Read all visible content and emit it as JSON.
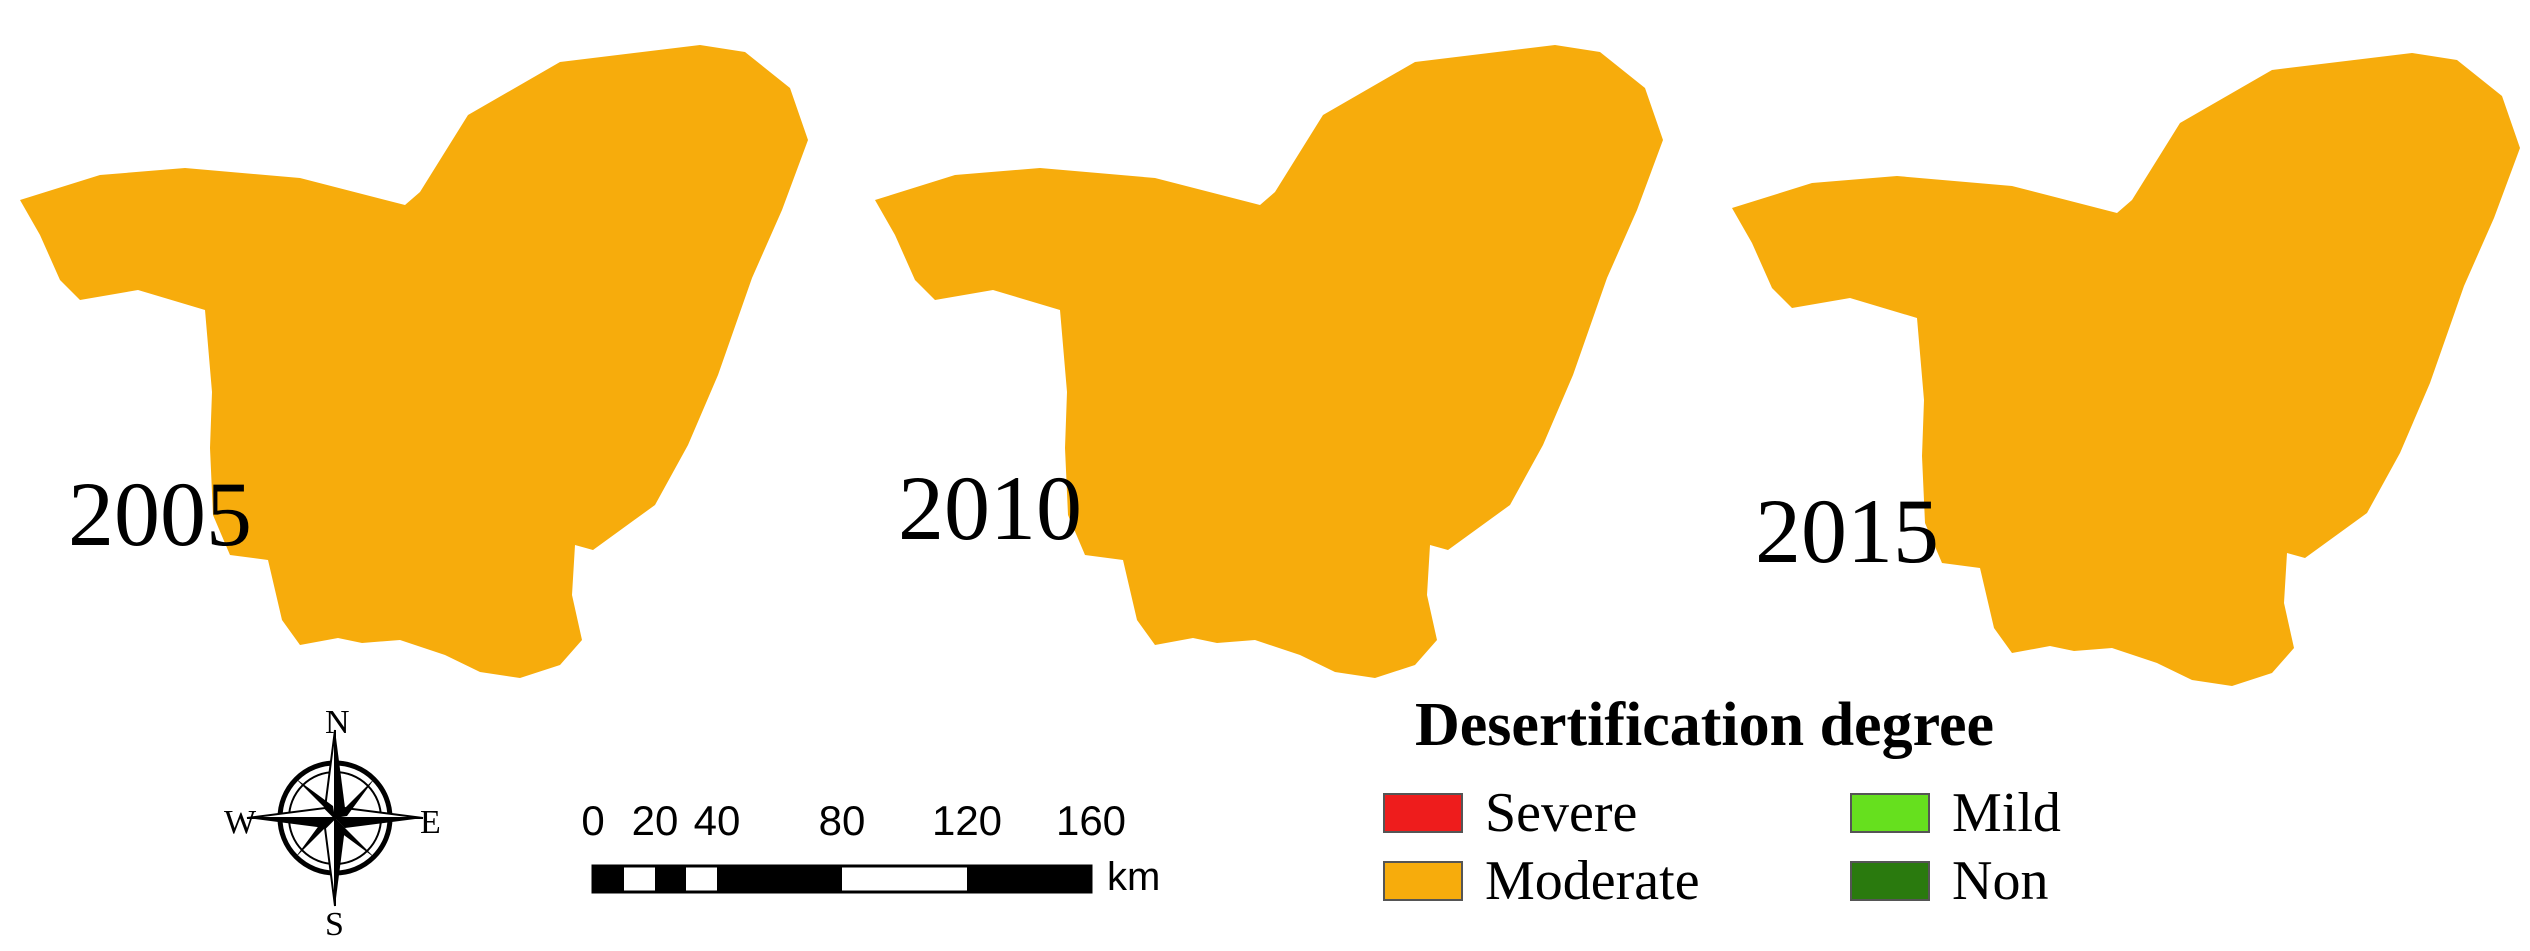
{
  "figure": {
    "panels": [
      {
        "year": "2005"
      },
      {
        "year": "2010"
      },
      {
        "year": "2015"
      }
    ],
    "legend": {
      "title": "Desertification degree",
      "items": [
        {
          "label": "Severe",
          "color": "#ee1c1c"
        },
        {
          "label": "Moderate",
          "color": "#f7ac0c"
        },
        {
          "label": "Mild",
          "color": "#66e01e"
        },
        {
          "label": "Non",
          "color": "#2a7a0e"
        }
      ]
    },
    "scale_bar": {
      "ticks": [
        "0",
        "20",
        "40",
        "80",
        "120",
        "160"
      ],
      "unit": "km"
    },
    "compass": {
      "north": "N",
      "south": "S",
      "east": "E",
      "west": "W"
    }
  }
}
